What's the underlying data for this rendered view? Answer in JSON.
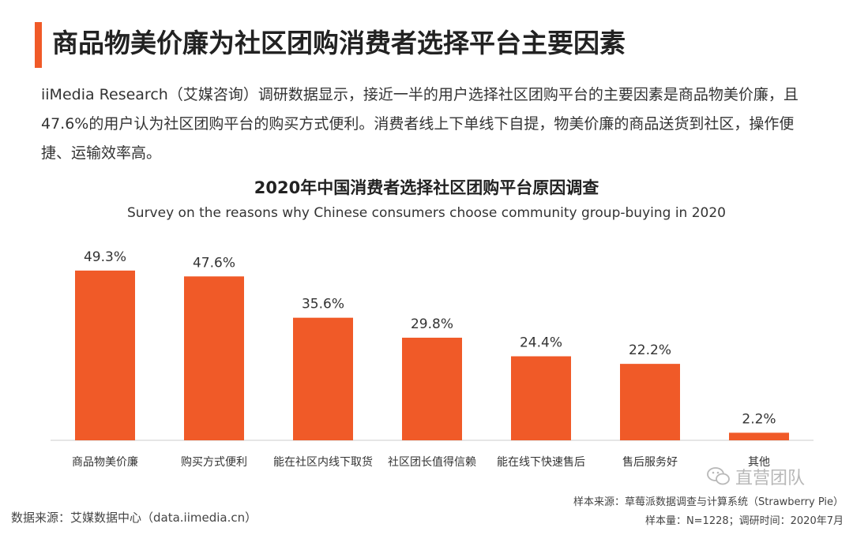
{
  "header": {
    "title": "商品物美价廉为社区团购消费者选择平台主要因素",
    "accent_color": "#f05a28"
  },
  "intro": {
    "text": "iiMedia Research（艾媒咨询）调研数据显示，接近一半的用户选择社区团购平台的主要因素是商品物美价廉，且47.6%的用户认为社区团购平台的购买方式便利。消费者线上下单线下自提，物美价廉的商品送货到社区，操作便捷、运输效率高。"
  },
  "chart_data": {
    "type": "bar",
    "title": "2020年中国消费者选择社区团购平台原因调查",
    "subtitle": "Survey on the reasons why Chinese consumers choose community group-buying in 2020",
    "categories": [
      "商品物美价廉",
      "购买方式便利",
      "能在社区内线下取货",
      "社区团长值得信赖",
      "能在线下快速售后",
      "售后服务好",
      "其他"
    ],
    "values": [
      49.3,
      47.6,
      35.6,
      29.8,
      24.4,
      22.2,
      2.2
    ],
    "value_labels": [
      "49.3%",
      "47.6%",
      "35.6%",
      "29.8%",
      "24.4%",
      "22.2%",
      "2.2%"
    ],
    "unit": "%",
    "ylim": [
      0,
      55
    ],
    "bar_color": "#f05a28",
    "grid": false,
    "legend": "none"
  },
  "footer": {
    "source": "数据来源：艾媒数据中心（data.iimedia.cn）",
    "sample_source": "样本来源：草莓派数据调查与计算系统（Strawberry Pie）",
    "sample_info": "样本量：N=1228；调研时间：2020年7月"
  },
  "watermark": {
    "text": "直营团队",
    "icon": "wechat-icon"
  }
}
